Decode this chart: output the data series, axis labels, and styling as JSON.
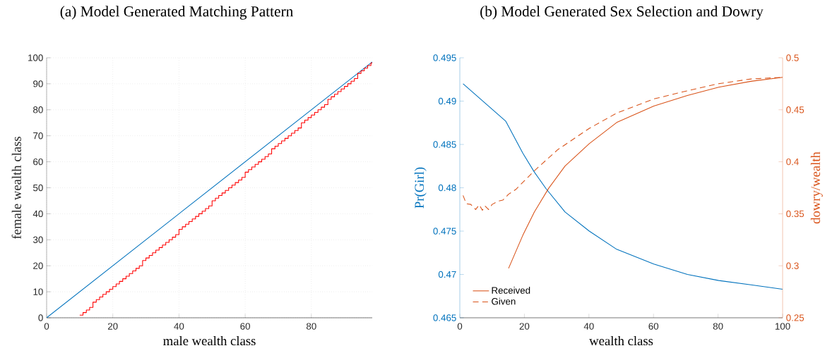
{
  "chart_data": [
    {
      "type": "line",
      "title": "(a) Model Generated Matching Pattern",
      "xlabel": "male wealth class",
      "ylabel": "female wealth class",
      "xlim": [
        0,
        98.4
      ],
      "xticks": [
        0,
        20,
        40,
        60,
        80
      ],
      "ylim": [
        0,
        100
      ],
      "yticks": [
        0,
        10,
        20,
        30,
        40,
        50,
        60,
        70,
        80,
        90,
        100
      ],
      "grid": true,
      "series": [
        {
          "color": "#0072bd",
          "x": [
            0,
            98.4
          ],
          "values": [
            0,
            98.4
          ]
        },
        {
          "type": "step",
          "color": "#ff0000",
          "x": [
            10,
            11,
            12,
            13,
            14,
            15,
            16,
            17,
            18,
            19,
            20,
            21,
            22,
            23,
            24,
            25,
            26,
            27,
            28,
            29,
            30,
            31,
            32,
            33,
            34,
            35,
            36,
            37,
            38,
            39,
            40,
            41,
            42,
            43,
            44,
            45,
            46,
            47,
            48,
            49,
            50,
            51,
            52,
            53,
            54,
            55,
            56,
            57,
            58,
            59,
            60,
            61,
            62,
            63,
            64,
            65,
            66,
            67,
            68,
            69,
            70,
            71,
            72,
            73,
            74,
            75,
            76,
            77,
            78,
            79,
            80,
            81,
            82,
            83,
            84,
            85,
            86,
            87,
            88,
            89,
            90,
            91,
            92,
            93,
            94,
            95,
            96,
            97,
            98,
            98.4
          ],
          "values": [
            1,
            2,
            3,
            4,
            6,
            7,
            8,
            9,
            10,
            11,
            12,
            13,
            14,
            15,
            16,
            17,
            18,
            19,
            20,
            22,
            23,
            24,
            25,
            26,
            27,
            28,
            29,
            30,
            31,
            32,
            34,
            35,
            36,
            37,
            38,
            39,
            40,
            41,
            42,
            43,
            45,
            46,
            47,
            48,
            49,
            50,
            51,
            52,
            53,
            54,
            56,
            57,
            58,
            59,
            60,
            61,
            62,
            63,
            65,
            66,
            67,
            68,
            69,
            70,
            71,
            72,
            73,
            75,
            76,
            77,
            78,
            79,
            80,
            81,
            82,
            84,
            85,
            86,
            87,
            88,
            89,
            90,
            91,
            92,
            94,
            95,
            96,
            97,
            98,
            98
          ]
        }
      ]
    },
    {
      "type": "line",
      "title": "(b) Model Generated Sex Selection and Dowry",
      "xlabel": "wealth class",
      "ylabel": "Pr(Girl)",
      "y2label": "dowry/wealth",
      "xlim": [
        0,
        100
      ],
      "xticks": [
        0,
        20,
        40,
        60,
        80,
        100
      ],
      "ylim": [
        0.465,
        0.495
      ],
      "yticks": [
        0.465,
        0.47,
        0.475,
        0.48,
        0.485,
        0.49,
        0.495
      ],
      "y2lim": [
        0.25,
        0.5
      ],
      "y2ticks": [
        0.25,
        0.3,
        0.35,
        0.4,
        0.45,
        0.5
      ],
      "legend": "bottom left",
      "series": [
        {
          "color": "#0072bd",
          "x": [
            1,
            14.2,
            19.5,
            23.1,
            26.7,
            32.6,
            40.1,
            48.6,
            60.1,
            70.5,
            80.2,
            90.2,
            100
          ],
          "values": [
            0.492,
            0.4877,
            0.484,
            0.4818,
            0.4799,
            0.4772,
            0.475,
            0.4729,
            0.4712,
            0.47,
            0.4693,
            0.4688,
            0.4683
          ]
        },
        {
          "name": "Received",
          "axis": "y2",
          "color": "#d95319",
          "line_style": "solid",
          "x": [
            15.1,
            19.5,
            23.1,
            27.5,
            32.6,
            40.1,
            48.6,
            60.1,
            70.5,
            80.2,
            90.2,
            100
          ],
          "values": [
            0.2975,
            0.3292,
            0.3518,
            0.3744,
            0.3959,
            0.4174,
            0.4378,
            0.4536,
            0.4638,
            0.4717,
            0.4774,
            0.4812
          ]
        },
        {
          "name": "Given",
          "axis": "y2",
          "color": "#d95319",
          "line_style": "dashed",
          "x": [
            1,
            2,
            3.4,
            4.9,
            6,
            7,
            7.8,
            8.9,
            10,
            11.8,
            13.3,
            15.1,
            17.3,
            23.1,
            30.4,
            40.1,
            48.6,
            60.1,
            70.5,
            80.2,
            90.2,
            100
          ],
          "values": [
            0.3676,
            0.3597,
            0.359,
            0.3541,
            0.3586,
            0.3534,
            0.3575,
            0.3541,
            0.359,
            0.362,
            0.3631,
            0.3688,
            0.3733,
            0.3914,
            0.4118,
            0.4321,
            0.4468,
            0.4604,
            0.4683,
            0.4751,
            0.4796,
            0.4812
          ]
        }
      ]
    }
  ]
}
